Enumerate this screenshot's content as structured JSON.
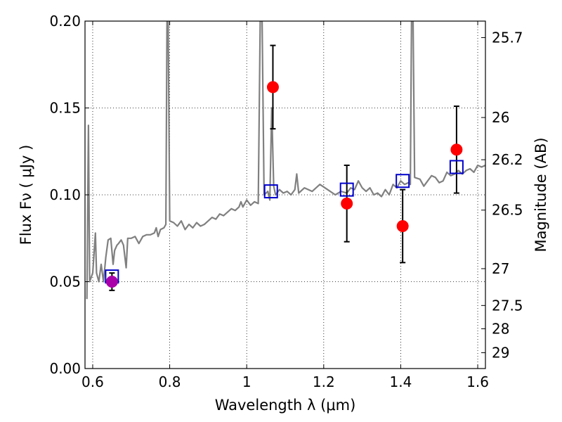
{
  "chart_data": {
    "type": "scatter",
    "xlabel": "Wavelength  λ (μm)",
    "ylabel": "Flux  Fν  ( μJy )",
    "ylabel_right": "Magnitude (AB)",
    "xlim": [
      0.58,
      1.62
    ],
    "ylim": [
      0.0,
      0.2
    ],
    "grid": true,
    "x_ticks": [
      0.6,
      0.8,
      1.0,
      1.2,
      1.4,
      1.6
    ],
    "x_tick_labels": [
      "0.6",
      "0.8",
      "1",
      "1.2",
      "1.4",
      "1.6"
    ],
    "y_ticks": [
      0.0,
      0.05,
      0.1,
      0.15,
      0.2
    ],
    "y_tick_labels": [
      "0.00",
      "0.05",
      "0.10",
      "0.15",
      "0.20"
    ],
    "right_ticks": [
      {
        "label": "25.7",
        "flux": 0.1905
      },
      {
        "label": "26",
        "flux": 0.1445
      },
      {
        "label": "26.2",
        "flux": 0.1202
      },
      {
        "label": "26.5",
        "flux": 0.0912
      },
      {
        "label": "27",
        "flux": 0.0575
      },
      {
        "label": "27.5",
        "flux": 0.0363
      },
      {
        "label": "28",
        "flux": 0.0229
      },
      {
        "label": "29",
        "flux": 0.0091
      }
    ],
    "spectrum": {
      "color": "#808080",
      "points": [
        [
          0.585,
          0.04
        ],
        [
          0.589,
          0.14
        ],
        [
          0.592,
          0.05
        ],
        [
          0.6,
          0.055
        ],
        [
          0.607,
          0.078
        ],
        [
          0.61,
          0.055
        ],
        [
          0.616,
          0.05
        ],
        [
          0.622,
          0.06
        ],
        [
          0.628,
          0.05
        ],
        [
          0.634,
          0.064
        ],
        [
          0.64,
          0.074
        ],
        [
          0.647,
          0.075
        ],
        [
          0.653,
          0.06
        ],
        [
          0.657,
          0.068
        ],
        [
          0.663,
          0.071
        ],
        [
          0.667,
          0.072
        ],
        [
          0.674,
          0.074
        ],
        [
          0.68,
          0.071
        ],
        [
          0.687,
          0.058
        ],
        [
          0.691,
          0.075
        ],
        [
          0.7,
          0.075
        ],
        [
          0.71,
          0.076
        ],
        [
          0.72,
          0.072
        ],
        [
          0.73,
          0.076
        ],
        [
          0.74,
          0.077
        ],
        [
          0.75,
          0.077
        ],
        [
          0.76,
          0.078
        ],
        [
          0.765,
          0.081
        ],
        [
          0.77,
          0.076
        ],
        [
          0.776,
          0.08
        ],
        [
          0.785,
          0.081
        ],
        [
          0.79,
          0.083
        ],
        [
          0.793,
          0.2
        ],
        [
          0.796,
          0.2
        ],
        [
          0.8,
          0.085
        ],
        [
          0.81,
          0.084
        ],
        [
          0.82,
          0.082
        ],
        [
          0.83,
          0.085
        ],
        [
          0.84,
          0.08
        ],
        [
          0.85,
          0.083
        ],
        [
          0.86,
          0.081
        ],
        [
          0.87,
          0.084
        ],
        [
          0.88,
          0.082
        ],
        [
          0.89,
          0.083
        ],
        [
          0.9,
          0.085
        ],
        [
          0.91,
          0.087
        ],
        [
          0.92,
          0.086
        ],
        [
          0.93,
          0.089
        ],
        [
          0.94,
          0.088
        ],
        [
          0.95,
          0.09
        ],
        [
          0.96,
          0.092
        ],
        [
          0.97,
          0.091
        ],
        [
          0.98,
          0.093
        ],
        [
          0.985,
          0.096
        ],
        [
          0.99,
          0.093
        ],
        [
          1.0,
          0.097
        ],
        [
          1.01,
          0.094
        ],
        [
          1.02,
          0.096
        ],
        [
          1.03,
          0.095
        ],
        [
          1.035,
          0.2
        ],
        [
          1.04,
          0.2
        ],
        [
          1.045,
          0.1
        ],
        [
          1.055,
          0.102
        ],
        [
          1.06,
          0.097
        ],
        [
          1.065,
          0.15
        ],
        [
          1.07,
          0.105
        ],
        [
          1.075,
          0.1
        ],
        [
          1.085,
          0.103
        ],
        [
          1.095,
          0.101
        ],
        [
          1.105,
          0.102
        ],
        [
          1.115,
          0.1
        ],
        [
          1.125,
          0.103
        ],
        [
          1.13,
          0.112
        ],
        [
          1.135,
          0.101
        ],
        [
          1.15,
          0.104
        ],
        [
          1.17,
          0.102
        ],
        [
          1.19,
          0.106
        ],
        [
          1.21,
          0.103
        ],
        [
          1.23,
          0.1
        ],
        [
          1.245,
          0.102
        ],
        [
          1.26,
          0.101
        ],
        [
          1.27,
          0.104
        ],
        [
          1.28,
          0.103
        ],
        [
          1.29,
          0.108
        ],
        [
          1.3,
          0.104
        ],
        [
          1.31,
          0.102
        ],
        [
          1.32,
          0.104
        ],
        [
          1.33,
          0.1
        ],
        [
          1.34,
          0.101
        ],
        [
          1.35,
          0.099
        ],
        [
          1.36,
          0.103
        ],
        [
          1.37,
          0.1
        ],
        [
          1.38,
          0.106
        ],
        [
          1.39,
          0.104
        ],
        [
          1.4,
          0.108
        ],
        [
          1.41,
          0.106
        ],
        [
          1.42,
          0.107
        ],
        [
          1.425,
          0.106
        ],
        [
          1.428,
          0.2
        ],
        [
          1.432,
          0.2
        ],
        [
          1.436,
          0.11
        ],
        [
          1.45,
          0.109
        ],
        [
          1.46,
          0.105
        ],
        [
          1.47,
          0.108
        ],
        [
          1.48,
          0.111
        ],
        [
          1.49,
          0.11
        ],
        [
          1.5,
          0.107
        ],
        [
          1.51,
          0.108
        ],
        [
          1.52,
          0.113
        ],
        [
          1.53,
          0.111
        ],
        [
          1.54,
          0.112
        ],
        [
          1.55,
          0.114
        ],
        [
          1.56,
          0.112
        ],
        [
          1.57,
          0.114
        ],
        [
          1.58,
          0.115
        ],
        [
          1.59,
          0.113
        ],
        [
          1.6,
          0.117
        ],
        [
          1.61,
          0.116
        ],
        [
          1.62,
          0.117
        ]
      ]
    },
    "observed": {
      "color": "#ff0000",
      "points": [
        {
          "x": 1.068,
          "y": 0.162,
          "err": 0.024
        },
        {
          "x": 1.26,
          "y": 0.095,
          "err": 0.022
        },
        {
          "x": 1.405,
          "y": 0.082,
          "err": 0.021
        },
        {
          "x": 1.545,
          "y": 0.126,
          "err": 0.025
        }
      ]
    },
    "observed_highlight": {
      "color": "#aa00aa",
      "points": [
        {
          "x": 0.65,
          "y": 0.05,
          "err": 0.005
        }
      ]
    },
    "model": {
      "color": "#0000cc",
      "points": [
        {
          "x": 0.65,
          "y": 0.053
        },
        {
          "x": 1.063,
          "y": 0.102
        },
        {
          "x": 1.26,
          "y": 0.103
        },
        {
          "x": 1.405,
          "y": 0.108
        },
        {
          "x": 1.545,
          "y": 0.116
        }
      ]
    }
  }
}
